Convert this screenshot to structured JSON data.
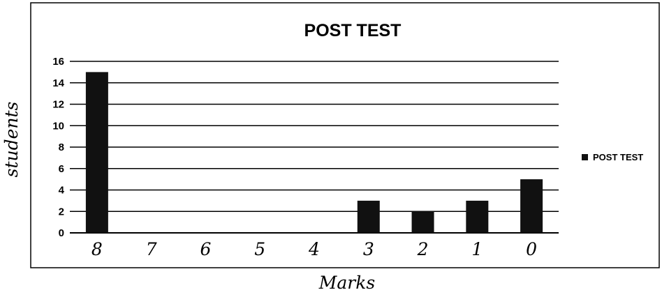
{
  "chart_data": {
    "type": "bar",
    "title": "POST TEST",
    "xlabel": "Marks",
    "ylabel": "students",
    "categories": [
      "8",
      "7",
      "6",
      "5",
      "4",
      "3",
      "2",
      "1",
      "0"
    ],
    "series": [
      {
        "name": "POST TEST",
        "values": [
          15,
          0,
          0,
          0,
          0,
          3,
          2,
          3,
          5
        ],
        "color": "#111111"
      }
    ],
    "ylim": [
      0,
      16
    ],
    "yticks": [
      "0",
      "2",
      "4",
      "6",
      "8",
      "10",
      "12",
      "14",
      "16"
    ],
    "grid": true,
    "legend": "right"
  }
}
